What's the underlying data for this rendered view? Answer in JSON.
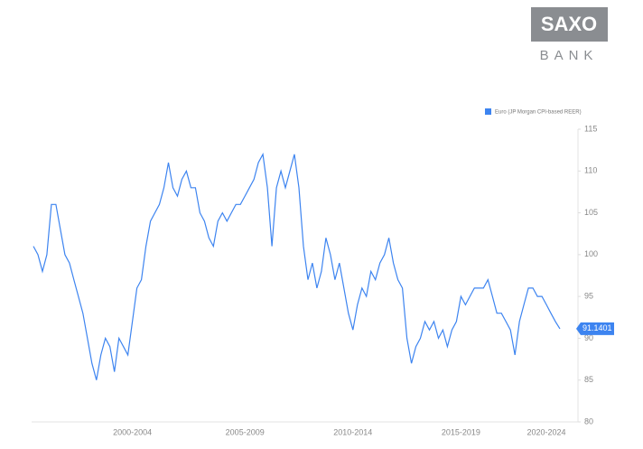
{
  "logo": {
    "top": "SAXO",
    "bottom": "BANK"
  },
  "chart_data": {
    "type": "line",
    "categories": [
      null,
      null,
      null,
      null,
      null,
      null,
      null,
      null,
      null,
      null,
      null,
      null,
      null,
      null,
      null,
      null,
      null,
      null,
      null,
      null,
      null,
      null,
      "2000-2004",
      null,
      null,
      null,
      null,
      null,
      null,
      null,
      null,
      null,
      null,
      null,
      null,
      null,
      null,
      null,
      null,
      null,
      null,
      null,
      null,
      null,
      null,
      null,
      null,
      "2005-2009",
      null,
      null,
      null,
      null,
      null,
      null,
      null,
      null,
      null,
      null,
      null,
      null,
      null,
      null,
      null,
      null,
      null,
      null,
      null,
      null,
      null,
      null,
      null,
      "2010-2014",
      null,
      null,
      null,
      null,
      null,
      null,
      null,
      null,
      null,
      null,
      null,
      null,
      null,
      null,
      null,
      null,
      null,
      null,
      null,
      null,
      null,
      null,
      null,
      "2015-2019",
      null,
      null,
      null,
      null,
      null,
      null,
      null,
      null,
      null,
      null,
      null,
      null,
      null,
      null,
      null,
      null,
      null,
      null,
      "2020-2024",
      null,
      null,
      null
    ],
    "series": [
      {
        "name": "Euro (JP Morgan CPI-based REER)",
        "color": "#3d84f0",
        "values": [
          101,
          100,
          98,
          100,
          106,
          106,
          103,
          100,
          99,
          97,
          95,
          93,
          90,
          87,
          85,
          88,
          90,
          89,
          86,
          90,
          89,
          88,
          92,
          96,
          97,
          101,
          104,
          105,
          106,
          108,
          111,
          108,
          107,
          109,
          110,
          108,
          108,
          105,
          104,
          102,
          101,
          104,
          105,
          104,
          105,
          106,
          106,
          107,
          108,
          109,
          111,
          112,
          108,
          101,
          108,
          110,
          108,
          110,
          112,
          108,
          101,
          97,
          99,
          96,
          98,
          102,
          100,
          97,
          99,
          96,
          93,
          91,
          94,
          96,
          95,
          98,
          97,
          99,
          100,
          102,
          99,
          97,
          96,
          90,
          87,
          89,
          90,
          92,
          91,
          92,
          90,
          91,
          89,
          91,
          92,
          95,
          94,
          95,
          96,
          96,
          96,
          97,
          95,
          93,
          93,
          92,
          91,
          88,
          92,
          94,
          96,
          96,
          95,
          95,
          94,
          93,
          92,
          91.1401
        ]
      }
    ],
    "ylim": [
      80,
      115
    ],
    "yticks": [
      80,
      85,
      90,
      95,
      100,
      105,
      110,
      115
    ],
    "grid": false
  }
}
